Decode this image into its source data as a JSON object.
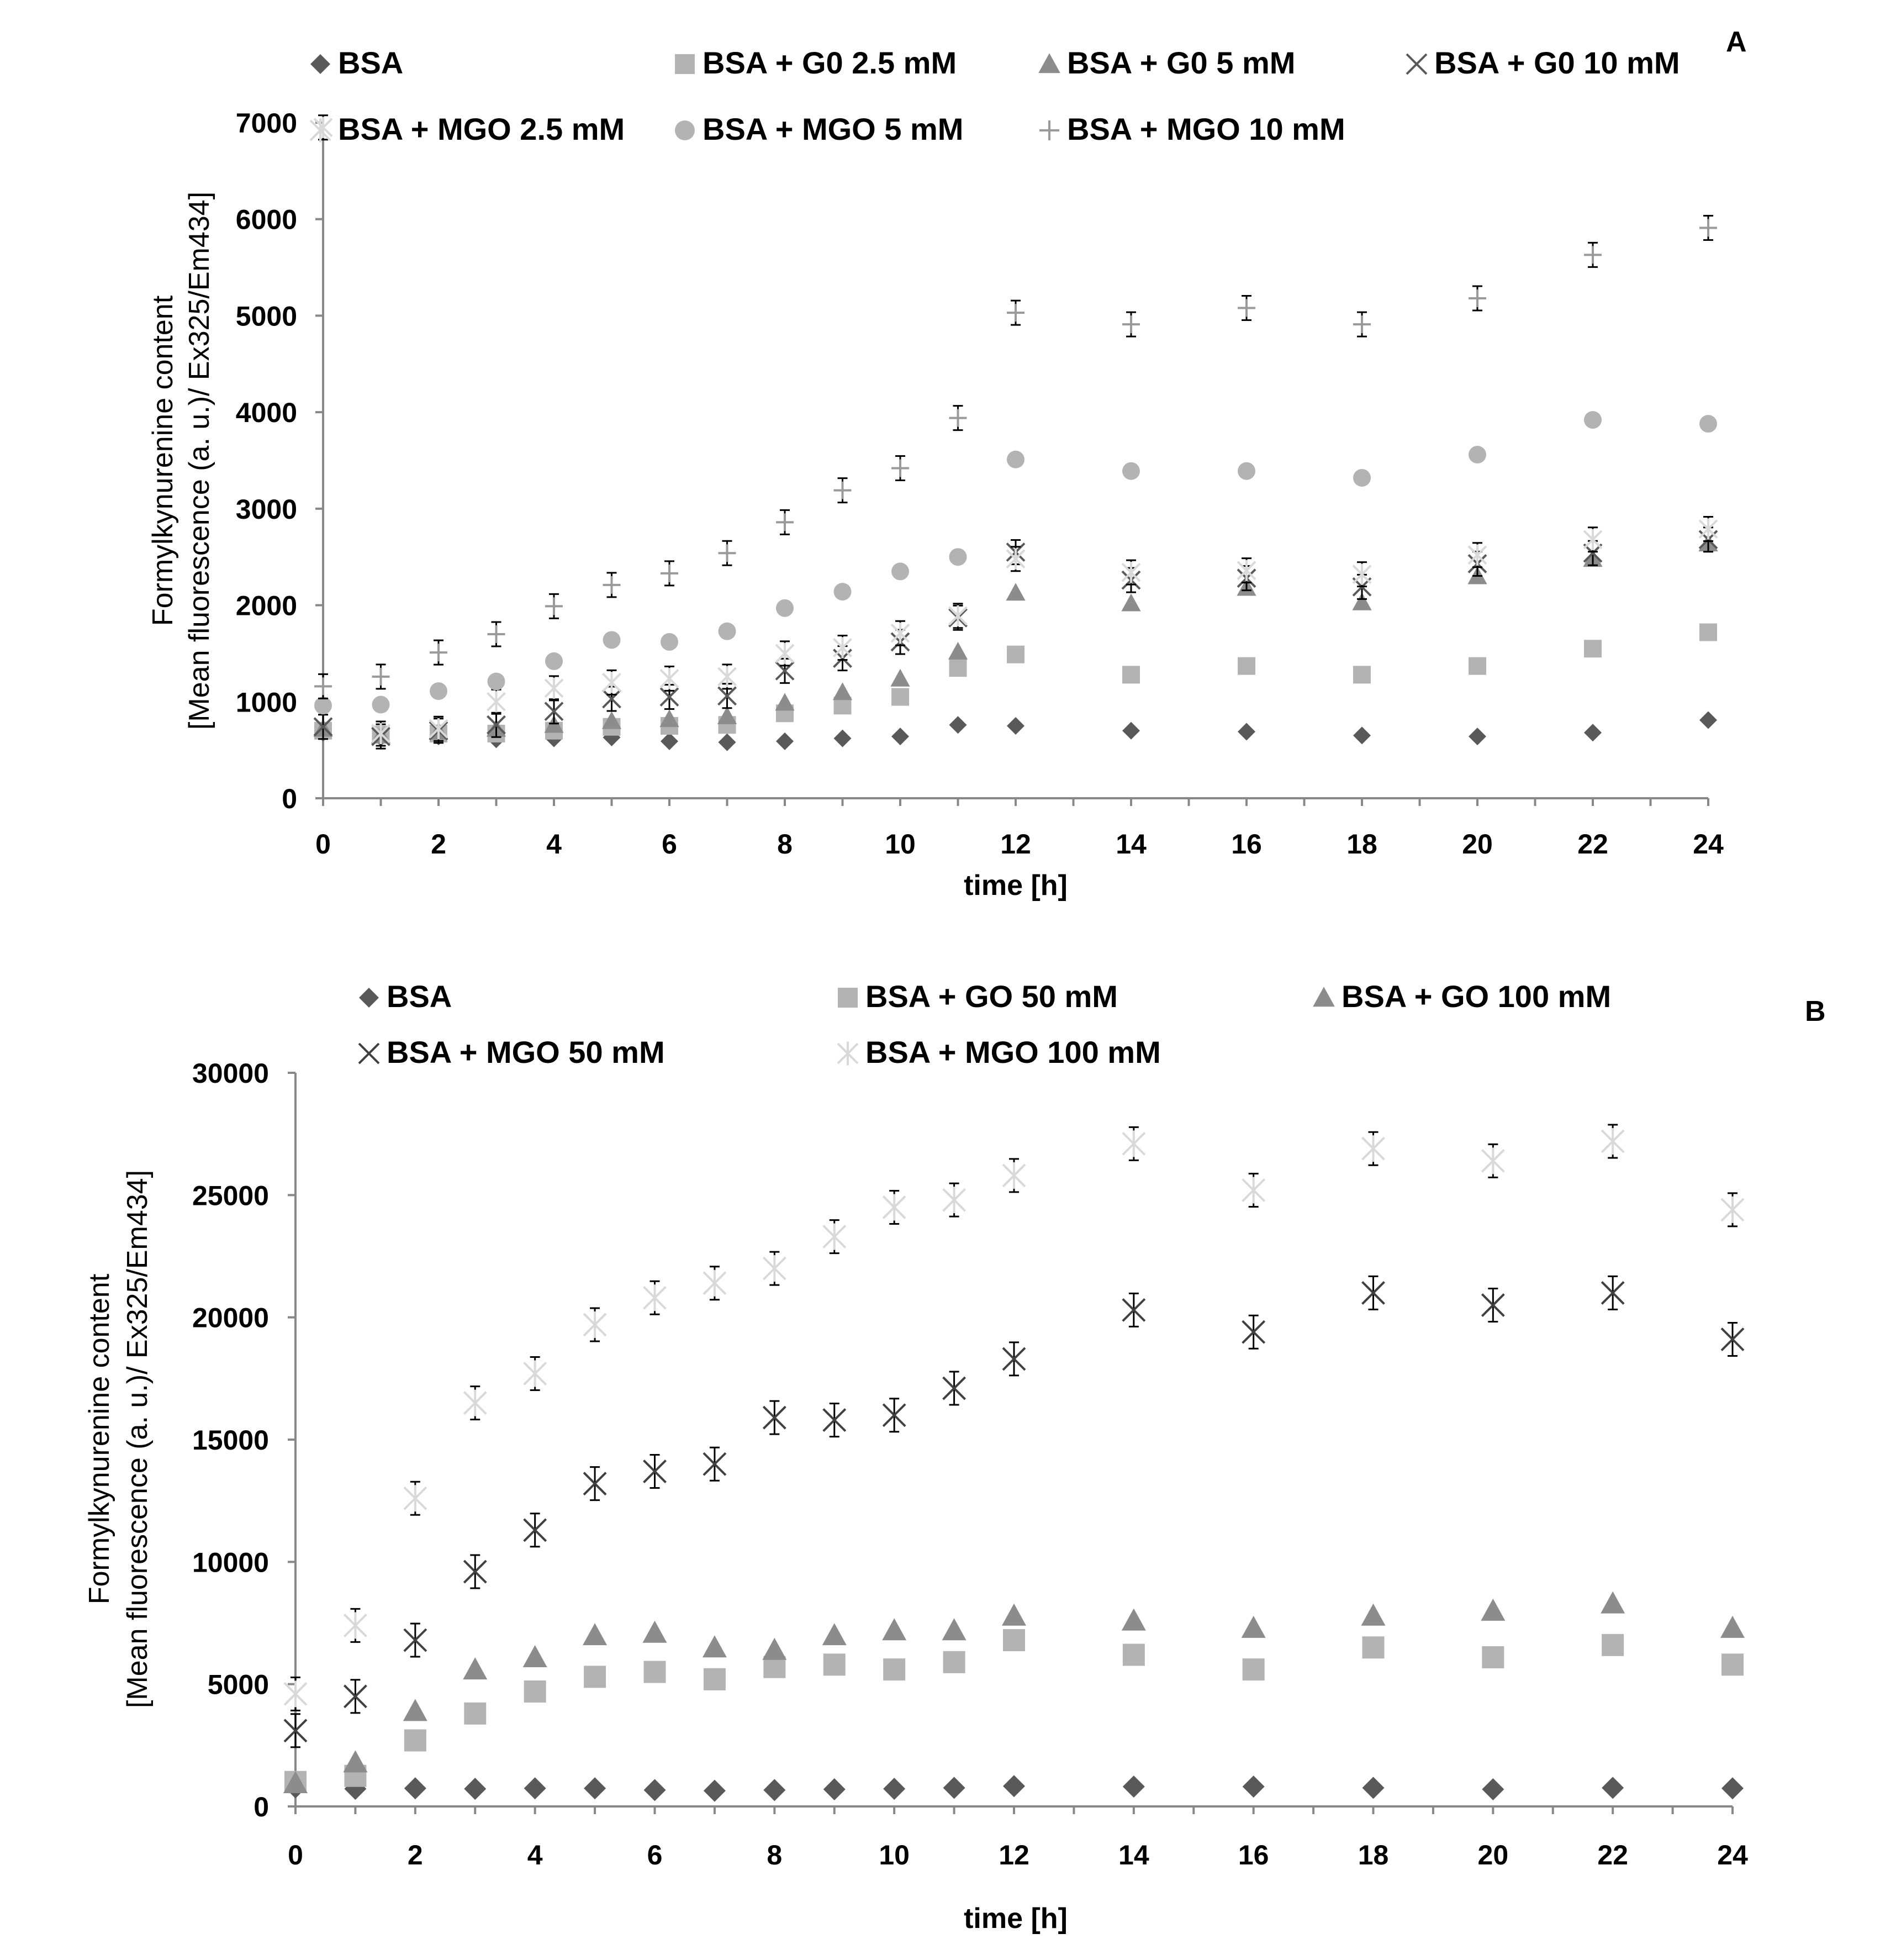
{
  "chart_data": [
    {
      "type": "scatter",
      "panel_label": "A",
      "xlabel": "time [h]",
      "ylabel": "Formylkynurenine content [Mean fluorescence (a. u.)/ Ex325/Em434]",
      "ylabel_lines": [
        "Formylkynurenine content",
        "[Mean fluorescence (a. u.)/ Ex325/Em434]"
      ],
      "xlim": [
        0,
        24
      ],
      "ylim": [
        0,
        7000
      ],
      "xticks": [
        "0",
        "2",
        "4",
        "6",
        "8",
        "10",
        "12",
        "14",
        "16",
        "18",
        "20",
        "22",
        "24"
      ],
      "yticks": [
        "0",
        "1000",
        "2000",
        "3000",
        "4000",
        "5000",
        "6000",
        "7000"
      ],
      "grid": false,
      "legend_position": "top",
      "x": [
        0,
        1,
        2,
        3,
        4,
        5,
        6,
        7,
        8,
        9,
        10,
        11,
        12,
        14,
        16,
        18,
        20,
        22,
        24
      ],
      "series": [
        {
          "name": "BSA",
          "marker": "diamond",
          "color": "#595959",
          "values": [
            680,
            630,
            640,
            610,
            620,
            630,
            590,
            580,
            590,
            620,
            640,
            760,
            750,
            700,
            690,
            650,
            640,
            680,
            810
          ]
        },
        {
          "name": "BSA + G0 2.5 mM",
          "marker": "square",
          "color": "#b3b3b3",
          "values": [
            700,
            660,
            670,
            670,
            700,
            740,
            750,
            760,
            880,
            960,
            1050,
            1350,
            1490,
            1280,
            1370,
            1280,
            1370,
            1550,
            1720
          ]
        },
        {
          "name": "BSA + G0 5 mM",
          "marker": "triangle",
          "color": "#8c8c8c",
          "values": [
            720,
            650,
            690,
            720,
            760,
            800,
            820,
            850,
            990,
            1100,
            1240,
            1520,
            2130,
            2020,
            2180,
            2030,
            2300,
            2480,
            2640
          ]
        },
        {
          "name": "BSA + G0 10 mM",
          "marker": "x",
          "color": "#595959",
          "values": [
            740,
            640,
            700,
            760,
            900,
            1030,
            1050,
            1060,
            1320,
            1450,
            1620,
            1870,
            2550,
            2260,
            2280,
            2190,
            2430,
            2540,
            2680
          ]
        },
        {
          "name": "BSA + MGO 2.5 mM",
          "marker": "star",
          "color": "#d9d9d9",
          "values": [
            6950,
            670,
            720,
            1000,
            1140,
            1200,
            1240,
            1260,
            1500,
            1560,
            1710,
            1890,
            2480,
            2340,
            2360,
            2320,
            2520,
            2680,
            2790
          ]
        },
        {
          "name": "BSA + MGO 5 mM",
          "marker": "circle",
          "color": "#b3b3b3",
          "values": [
            960,
            970,
            1110,
            1210,
            1420,
            1640,
            1620,
            1730,
            1970,
            2140,
            2350,
            2500,
            3510,
            3390,
            3390,
            3320,
            3560,
            3920,
            3880
          ]
        },
        {
          "name": "BSA + MGO 10 mM",
          "marker": "plus",
          "color": "#9a9a9a",
          "values": [
            1160,
            1260,
            1510,
            1700,
            1990,
            2210,
            2330,
            2540,
            2860,
            3190,
            3420,
            3940,
            5030,
            4910,
            5080,
            4910,
            5180,
            5630,
            5910
          ]
        }
      ]
    },
    {
      "type": "scatter",
      "panel_label": "B",
      "xlabel": "time [h]",
      "ylabel": "Formylkynurenine content [Mean fluorescence (a. u.)/ Ex325/Em434]",
      "ylabel_lines": [
        "Formylkynurenine content",
        "[Mean fluorescence (a. u.)/ Ex325/Em434]"
      ],
      "xlim": [
        0,
        24
      ],
      "ylim": [
        0,
        30000
      ],
      "xticks": [
        "0",
        "2",
        "4",
        "6",
        "8",
        "10",
        "12",
        "14",
        "16",
        "18",
        "20",
        "22",
        "24"
      ],
      "yticks": [
        "0",
        "5000",
        "10000",
        "15000",
        "20000",
        "25000",
        "30000"
      ],
      "grid": false,
      "legend_position": "top",
      "x": [
        0,
        1,
        2,
        3,
        4,
        5,
        6,
        7,
        8,
        9,
        10,
        11,
        12,
        14,
        16,
        18,
        20,
        22,
        24
      ],
      "series": [
        {
          "name": "BSA",
          "marker": "diamond",
          "color": "#595959",
          "values": [
            780,
            720,
            740,
            720,
            740,
            740,
            670,
            640,
            670,
            700,
            720,
            760,
            830,
            810,
            810,
            760,
            700,
            760,
            740
          ]
        },
        {
          "name": "BSA + GO 50 mM",
          "marker": "square",
          "color": "#b3b3b3",
          "values": [
            1000,
            1250,
            2700,
            3800,
            4700,
            5300,
            5500,
            5200,
            5700,
            5800,
            5600,
            5900,
            6800,
            6200,
            5600,
            6500,
            6100,
            6600,
            5800
          ]
        },
        {
          "name": "BSA + GO 100 mM",
          "marker": "triangle",
          "color": "#8c8c8c",
          "values": [
            950,
            1800,
            3900,
            5600,
            6100,
            7000,
            7100,
            6500,
            6400,
            7000,
            7200,
            7200,
            7800,
            7600,
            7300,
            7800,
            8000,
            8300,
            7300
          ]
        },
        {
          "name": "BSA + MGO 50 mM",
          "marker": "x",
          "color": "#404040",
          "values": [
            3100,
            4500,
            6800,
            9600,
            11300,
            13200,
            13700,
            14000,
            15900,
            15800,
            16000,
            17100,
            18300,
            20300,
            19400,
            21000,
            20500,
            21000,
            19100
          ]
        },
        {
          "name": "BSA + MGO 100 mM",
          "marker": "star",
          "color": "#d9d9d9",
          "values": [
            4600,
            7400,
            12600,
            16500,
            17700,
            19700,
            20800,
            21400,
            22000,
            23300,
            24500,
            24800,
            25800,
            27100,
            25200,
            26900,
            26400,
            27200,
            24400
          ]
        }
      ]
    }
  ]
}
